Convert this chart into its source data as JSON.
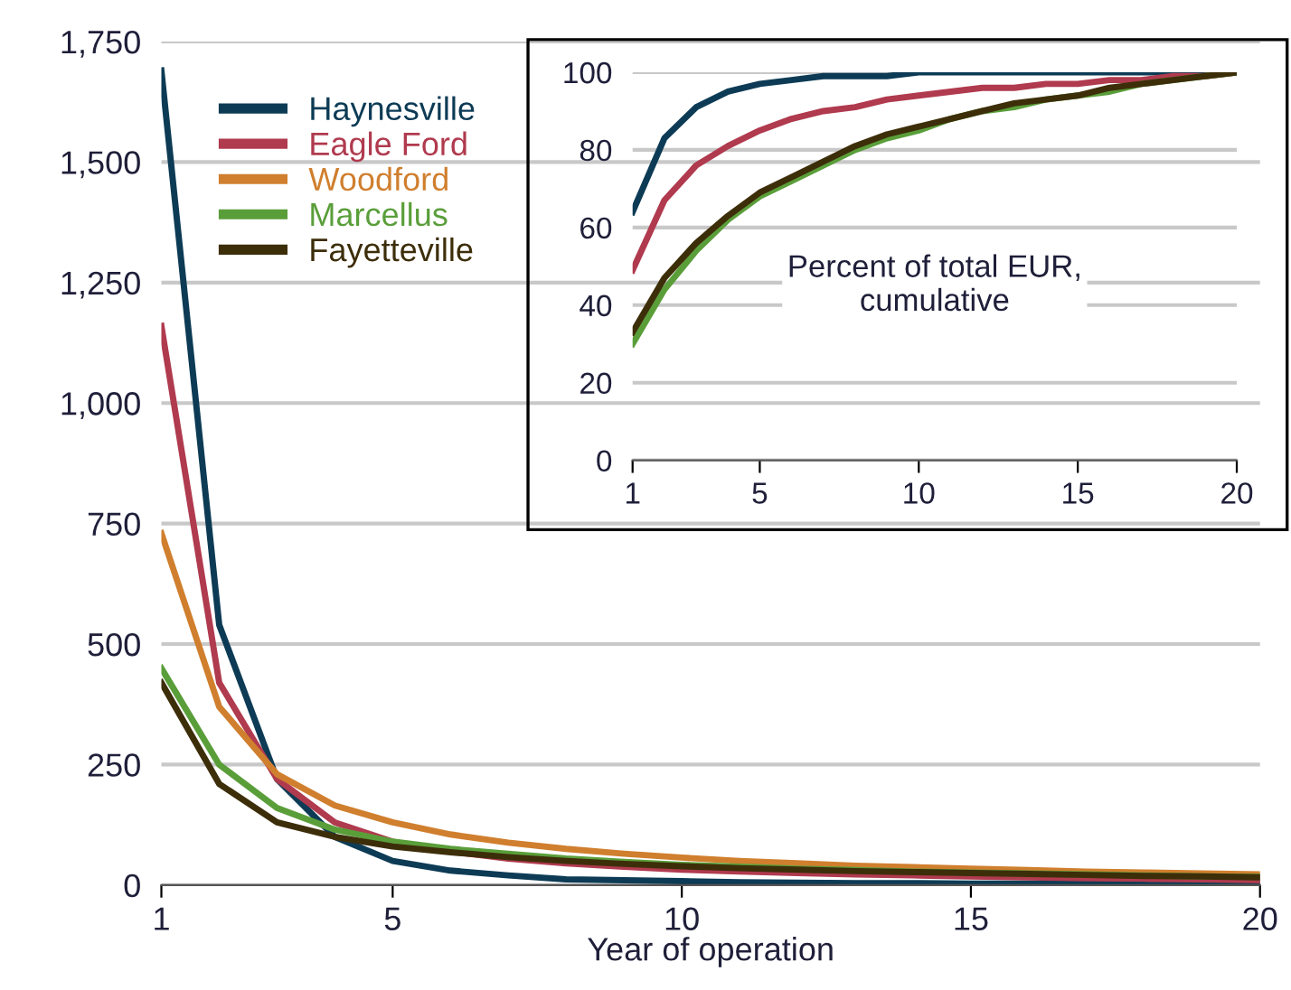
{
  "chart_data": [
    {
      "type": "line",
      "xlabel": "Year of operation",
      "x": [
        1,
        2,
        3,
        4,
        5,
        6,
        7,
        8,
        9,
        10,
        11,
        12,
        13,
        14,
        15,
        16,
        17,
        18,
        19,
        20
      ],
      "xlim": [
        1,
        20
      ],
      "xticks": [
        1,
        5,
        10,
        15,
        20
      ],
      "ylim": [
        0,
        1750
      ],
      "yticks": [
        0,
        {
          "value": 250,
          "label": "250"
        },
        {
          "value": 500,
          "label": "500"
        },
        {
          "value": 750,
          "label": "750"
        },
        {
          "value": 1000,
          "label": "1,000"
        },
        {
          "value": 1250,
          "label": "1,250"
        },
        {
          "value": 1500,
          "label": "1,500"
        },
        {
          "value": 1750,
          "label": "1,750"
        }
      ],
      "grid": "y",
      "legend": "top left",
      "marker": "none",
      "line_style": "solid",
      "series": [
        {
          "name": "Haynesville",
          "color": "#0d3b55",
          "values": [
            1690,
            540,
            220,
            100,
            50,
            30,
            20,
            12,
            10,
            8,
            6,
            5,
            4,
            4,
            3,
            3,
            3,
            2,
            2,
            2
          ]
        },
        {
          "name": "Eagle Ford",
          "color": "#b03a4e",
          "values": [
            1160,
            420,
            220,
            130,
            90,
            70,
            55,
            45,
            38,
            32,
            28,
            25,
            22,
            20,
            18,
            16,
            14,
            13,
            12,
            10
          ]
        },
        {
          "name": "Woodford",
          "color": "#d07f2e",
          "values": [
            730,
            370,
            230,
            165,
            130,
            105,
            88,
            75,
            65,
            57,
            50,
            45,
            40,
            37,
            34,
            31,
            28,
            26,
            24,
            22
          ]
        },
        {
          "name": "Marcellus",
          "color": "#5a9e3a",
          "values": [
            450,
            250,
            160,
            115,
            90,
            75,
            65,
            55,
            48,
            42,
            38,
            34,
            31,
            28,
            26,
            24,
            22,
            20,
            18,
            17
          ]
        },
        {
          "name": "Fayetteville",
          "color": "#3d2e0a",
          "values": [
            420,
            210,
            130,
            100,
            80,
            68,
            58,
            50,
            44,
            39,
            35,
            32,
            29,
            27,
            25,
            23,
            21,
            19,
            18,
            16
          ]
        }
      ]
    },
    {
      "type": "line",
      "annotations": [
        "Percent of total EUR,\ncumulative"
      ],
      "x": [
        1,
        2,
        3,
        4,
        5,
        6,
        7,
        8,
        9,
        10,
        11,
        12,
        13,
        14,
        15,
        16,
        17,
        18,
        19,
        20
      ],
      "xlim": [
        1,
        20
      ],
      "xticks": [
        1,
        5,
        10,
        15,
        20
      ],
      "ylim": [
        0,
        100
      ],
      "yticks": [
        0,
        20,
        40,
        60,
        80,
        100
      ],
      "grid": "y",
      "marker": "none",
      "line_style": "solid",
      "series": [
        {
          "color": "#0d3b55",
          "values": [
            64,
            83,
            91,
            95,
            97,
            98,
            99,
            99,
            99,
            100,
            100,
            100,
            100,
            100,
            100,
            100,
            100,
            100,
            100,
            100
          ]
        },
        {
          "color": "#b03a4e",
          "values": [
            49,
            67,
            76,
            81,
            85,
            88,
            90,
            91,
            93,
            94,
            95,
            96,
            96,
            97,
            97,
            98,
            98,
            99,
            99,
            100
          ]
        },
        {
          "color": "#5a9e3a",
          "values": [
            30,
            44,
            54,
            62,
            68,
            72,
            76,
            80,
            83,
            85,
            88,
            90,
            91,
            93,
            94,
            95,
            97,
            98,
            99,
            100
          ]
        },
        {
          "color": "#3d2e0a",
          "values": [
            33,
            47,
            56,
            63,
            69,
            73,
            77,
            81,
            84,
            86,
            88,
            90,
            92,
            93,
            94,
            96,
            97,
            98,
            99,
            100
          ]
        }
      ]
    }
  ]
}
